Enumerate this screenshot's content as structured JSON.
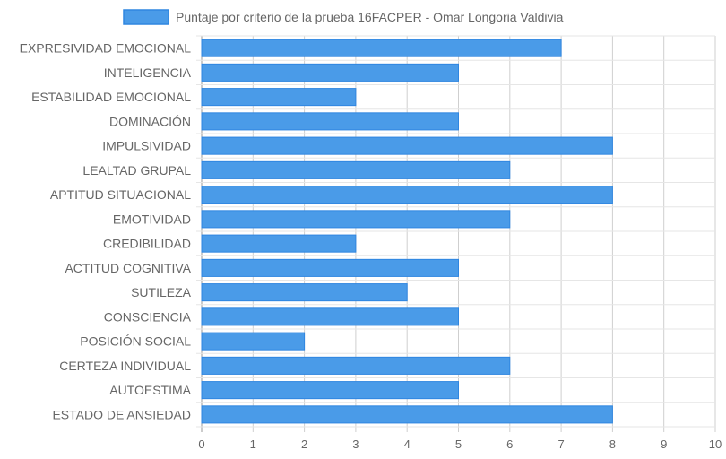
{
  "chart_data": {
    "type": "bar",
    "orientation": "horizontal",
    "categories": [
      "EXPRESIVIDAD EMOCIONAL",
      "INTELIGENCIA",
      "ESTABILIDAD EMOCIONAL",
      "DOMINACIÓN",
      "IMPULSIVIDAD",
      "LEALTAD GRUPAL",
      "APTITUD SITUACIONAL",
      "EMOTIVIDAD",
      "CREDIBILIDAD",
      "ACTITUD COGNITIVA",
      "SUTILEZA",
      "CONSCIENCIA",
      "POSICIÓN SOCIAL",
      "CERTEZA INDIVIDUAL",
      "AUTOESTIMA",
      "ESTADO DE ANSIEDAD"
    ],
    "series": [
      {
        "name": "Puntaje por criterio de la prueba 16FACPER - Omar Longoria Valdivia",
        "values": [
          7,
          5,
          3,
          5,
          8,
          6,
          8,
          6,
          3,
          5,
          4,
          5,
          2,
          6,
          5,
          8
        ],
        "color": "#4a9be8"
      }
    ],
    "xlim": [
      0,
      10
    ],
    "x_ticks": [
      "0",
      "1",
      "2",
      "3",
      "4",
      "5",
      "6",
      "7",
      "8",
      "9",
      "10"
    ],
    "grid": true,
    "legend_position": "top"
  }
}
